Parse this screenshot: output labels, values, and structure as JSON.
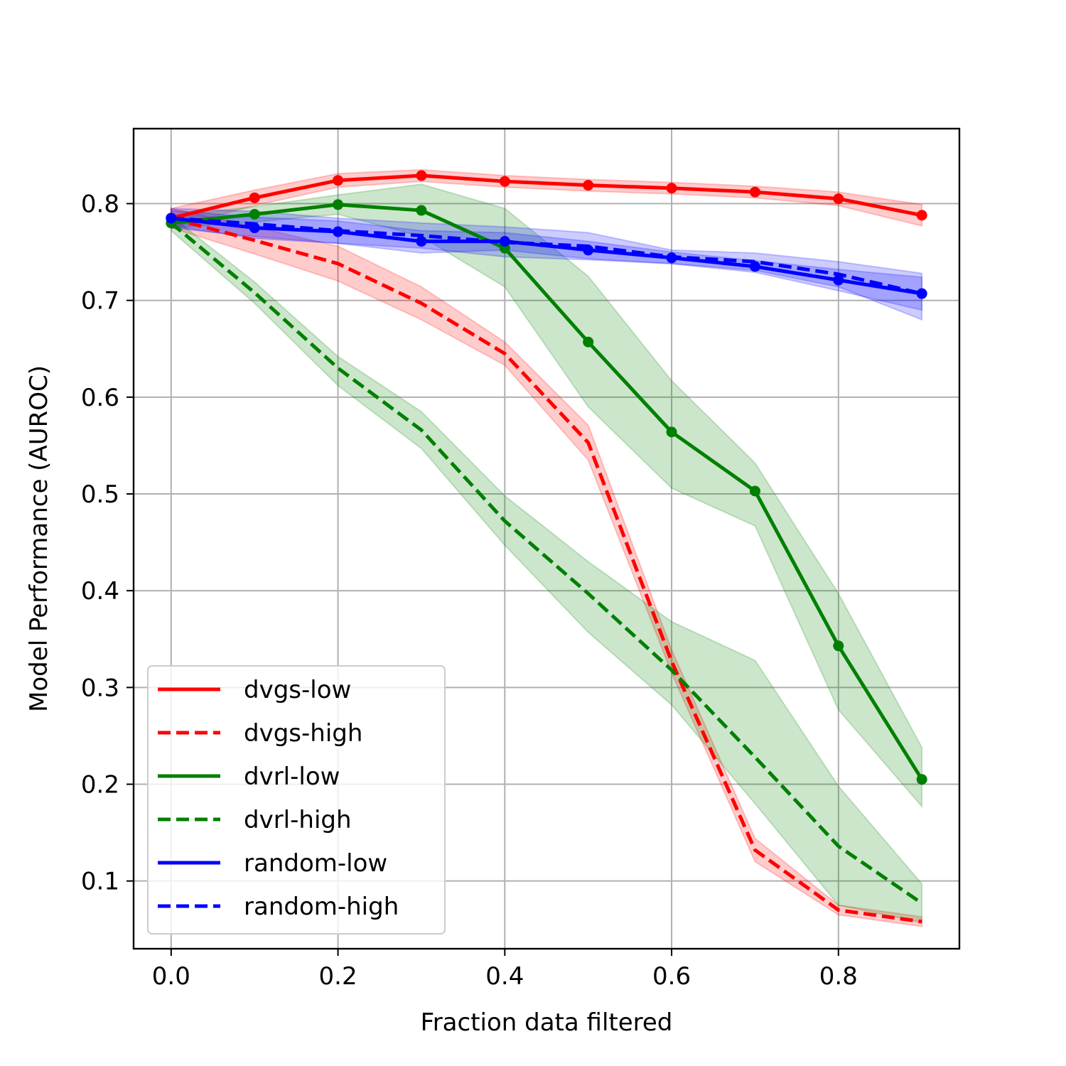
{
  "chart_data": {
    "type": "line",
    "title": "",
    "xlabel": "Fraction data filtered",
    "ylabel": "Model Performance (AUROC)",
    "xlim": [
      -0.045,
      0.945
    ],
    "ylim": [
      0.03,
      0.8775
    ],
    "xticks": [
      0.0,
      0.2,
      0.4,
      0.6,
      0.8
    ],
    "xtick_labels": [
      "0.0",
      "0.2",
      "0.4",
      "0.6",
      "0.8"
    ],
    "yticks": [
      0.1,
      0.2,
      0.3,
      0.4,
      0.5,
      0.6,
      0.7,
      0.8
    ],
    "ytick_labels": [
      "0.1",
      "0.2",
      "0.3",
      "0.4",
      "0.5",
      "0.6",
      "0.7",
      "0.8"
    ],
    "grid": true,
    "legend_position": "bottom-left",
    "x": [
      0.0,
      0.1,
      0.2,
      0.3,
      0.4,
      0.5,
      0.6,
      0.7,
      0.8,
      0.9
    ],
    "series": [
      {
        "name": "dvgs-low",
        "color": "#ff0000",
        "dash": "solid",
        "markers": true,
        "values": [
          0.785,
          0.806,
          0.824,
          0.829,
          0.823,
          0.819,
          0.816,
          0.812,
          0.805,
          0.788
        ],
        "lower": [
          0.775,
          0.798,
          0.817,
          0.823,
          0.817,
          0.813,
          0.81,
          0.806,
          0.798,
          0.777
        ],
        "upper": [
          0.795,
          0.814,
          0.831,
          0.835,
          0.829,
          0.825,
          0.822,
          0.818,
          0.812,
          0.799
        ]
      },
      {
        "name": "dvgs-high",
        "color": "#ff0000",
        "dash": "dashed",
        "markers": false,
        "values": [
          0.785,
          0.762,
          0.738,
          0.697,
          0.645,
          0.553,
          0.327,
          0.132,
          0.07,
          0.058
        ],
        "lower": [
          0.775,
          0.748,
          0.72,
          0.68,
          0.633,
          0.535,
          0.315,
          0.12,
          0.065,
          0.053
        ],
        "upper": [
          0.795,
          0.776,
          0.756,
          0.714,
          0.657,
          0.571,
          0.339,
          0.144,
          0.075,
          0.063
        ]
      },
      {
        "name": "dvrl-low",
        "color": "#008000",
        "dash": "solid",
        "markers": true,
        "values": [
          0.78,
          0.789,
          0.799,
          0.793,
          0.754,
          0.657,
          0.564,
          0.503,
          0.343,
          0.205
        ],
        "lower": [
          0.775,
          0.781,
          0.789,
          0.766,
          0.714,
          0.59,
          0.506,
          0.467,
          0.277,
          0.177
        ],
        "upper": [
          0.787,
          0.797,
          0.809,
          0.82,
          0.795,
          0.725,
          0.617,
          0.532,
          0.397,
          0.238
        ]
      },
      {
        "name": "dvrl-high",
        "color": "#008000",
        "dash": "dashed",
        "markers": false,
        "values": [
          0.78,
          0.708,
          0.63,
          0.566,
          0.472,
          0.397,
          0.318,
          0.228,
          0.136,
          0.077
        ],
        "lower": [
          0.772,
          0.697,
          0.612,
          0.547,
          0.447,
          0.357,
          0.282,
          0.18,
          0.075,
          0.057
        ],
        "upper": [
          0.787,
          0.719,
          0.642,
          0.585,
          0.498,
          0.43,
          0.368,
          0.328,
          0.198,
          0.097
        ]
      },
      {
        "name": "random-low",
        "color": "#0000ff",
        "dash": "solid",
        "markers": true,
        "values": [
          0.785,
          0.775,
          0.771,
          0.761,
          0.761,
          0.752,
          0.744,
          0.735,
          0.721,
          0.707
        ],
        "lower": [
          0.777,
          0.764,
          0.759,
          0.749,
          0.752,
          0.743,
          0.738,
          0.729,
          0.71,
          0.69
        ],
        "upper": [
          0.793,
          0.786,
          0.782,
          0.772,
          0.77,
          0.761,
          0.75,
          0.741,
          0.732,
          0.724
        ]
      },
      {
        "name": "random-high",
        "color": "#0000ff",
        "dash": "dashed",
        "markers": false,
        "values": [
          0.785,
          0.779,
          0.772,
          0.767,
          0.76,
          0.756,
          0.745,
          0.74,
          0.727,
          0.707
        ],
        "lower": [
          0.775,
          0.766,
          0.759,
          0.754,
          0.745,
          0.742,
          0.738,
          0.731,
          0.714,
          0.68
        ],
        "upper": [
          0.795,
          0.792,
          0.785,
          0.78,
          0.776,
          0.77,
          0.752,
          0.749,
          0.74,
          0.728
        ]
      }
    ]
  }
}
